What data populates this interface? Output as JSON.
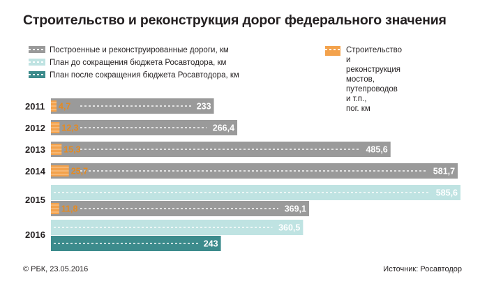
{
  "title": "Строительство и реконструкция дорог федерального значения",
  "legend": [
    {
      "id": "built",
      "label": "Построенные и реконструированные дороги, км",
      "color": "#9a9a9a"
    },
    {
      "id": "plan_before",
      "label": "План до сокращения бюджета Росавтодора, км",
      "color": "#bfe3e2"
    },
    {
      "id": "plan_after",
      "label": "План после сокращения бюджета Росавтодора, км",
      "color": "#3c8b8c"
    },
    {
      "id": "bridges",
      "label": "Строительство\nи реконструкция\nмостов, путепроводов и т.п.,\nпог. км",
      "color": "#f3a24c"
    }
  ],
  "footer": {
    "credit": "© РБК, 23.05.2016",
    "source": "Источник: Росавтодор"
  },
  "colors": {
    "built": "#9a9a9a",
    "plan_before": "#bfe3e2",
    "plan_after": "#3c8b8c",
    "bridges": "#f3a24c",
    "bridge_text": "#e68a1f"
  },
  "chart_data": {
    "type": "bar",
    "orientation": "horizontal",
    "categories": [
      "2011",
      "2012",
      "2013",
      "2014",
      "2015",
      "2016"
    ],
    "bars": [
      {
        "year": "2011",
        "series": "built",
        "value": 233,
        "label": "233",
        "bridge": 4.7,
        "bridge_label": "4,7"
      },
      {
        "year": "2012",
        "series": "built",
        "value": 266.4,
        "label": "266,4",
        "bridge": 12.3,
        "bridge_label": "12,3"
      },
      {
        "year": "2013",
        "series": "built",
        "value": 485.6,
        "label": "485,6",
        "bridge": 15.3,
        "bridge_label": "15,3"
      },
      {
        "year": "2014",
        "series": "built",
        "value": 581.7,
        "label": "581,7",
        "bridge": 25.7,
        "bridge_label": "25,7"
      },
      {
        "year": "2015",
        "series": "plan_before",
        "value": 585.6,
        "label": "585,6",
        "bridge": null,
        "bridge_label": null
      },
      {
        "year": "2015",
        "series": "built",
        "value": 369.1,
        "label": "369,1",
        "bridge": 11.8,
        "bridge_label": "11,8"
      },
      {
        "year": "2016",
        "series": "plan_before",
        "value": 360.5,
        "label": "360,5",
        "bridge": null,
        "bridge_label": null
      },
      {
        "year": "2016",
        "series": "plan_after",
        "value": 243,
        "label": "243",
        "bridge": null,
        "bridge_label": null
      }
    ],
    "xlim": [
      0,
      600
    ],
    "grid": false,
    "legend_position": "top"
  }
}
